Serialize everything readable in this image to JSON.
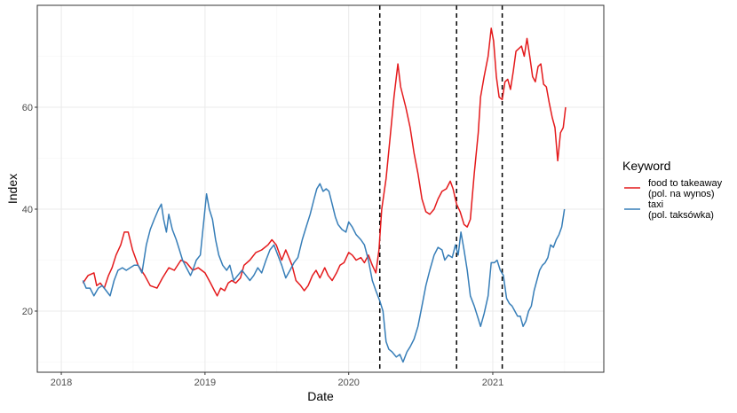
{
  "chart_data": {
    "type": "line",
    "xlabel": "Date",
    "ylabel": "Index",
    "x_axis_type": "date",
    "xlim": [
      "2017-11-01",
      "2021-10-10"
    ],
    "ylim": [
      8,
      80
    ],
    "x_ticks": [
      {
        "date": "2018-01-01",
        "label": "2018"
      },
      {
        "date": "2019-01-01",
        "label": "2019"
      },
      {
        "date": "2020-01-01",
        "label": "2020"
      },
      {
        "date": "2021-01-01",
        "label": "2021"
      }
    ],
    "y_ticks": [
      {
        "value": 20,
        "label": "20"
      },
      {
        "value": 40,
        "label": "40"
      },
      {
        "value": 60,
        "label": "60"
      }
    ],
    "grid": true,
    "legend": {
      "title": "Keyword",
      "position": "right",
      "entries": [
        {
          "series": 0,
          "lines": [
            "food to takeaway",
            "(pol. na wynos)"
          ]
        },
        {
          "series": 1,
          "lines": [
            "taxi",
            "(pol. taksówka)"
          ]
        }
      ]
    },
    "vlines": [
      "2020-03-20",
      "2020-10-01",
      "2021-01-25"
    ],
    "series": [
      {
        "name": "food to takeaway (pol. na wynos)",
        "color": "#e41a1c",
        "points": [
          [
            "2018-02-25",
            25.5
          ],
          [
            "2018-03-10",
            27
          ],
          [
            "2018-03-25",
            27.5
          ],
          [
            "2018-04-01",
            25
          ],
          [
            "2018-04-10",
            25.5
          ],
          [
            "2018-04-20",
            24.5
          ],
          [
            "2018-05-01",
            27
          ],
          [
            "2018-05-10",
            28.5
          ],
          [
            "2018-05-20",
            31
          ],
          [
            "2018-06-01",
            33
          ],
          [
            "2018-06-10",
            35.5
          ],
          [
            "2018-06-20",
            35.5
          ],
          [
            "2018-07-01",
            32
          ],
          [
            "2018-07-15",
            29
          ],
          [
            "2018-08-01",
            27
          ],
          [
            "2018-08-15",
            25
          ],
          [
            "2018-09-01",
            24.5
          ],
          [
            "2018-09-15",
            26.5
          ],
          [
            "2018-10-01",
            28.5
          ],
          [
            "2018-10-15",
            28
          ],
          [
            "2018-11-01",
            30
          ],
          [
            "2018-11-15",
            29.5
          ],
          [
            "2018-12-01",
            28
          ],
          [
            "2018-12-15",
            28.5
          ],
          [
            "2019-01-01",
            27.5
          ],
          [
            "2019-01-15",
            25.5
          ],
          [
            "2019-01-25",
            24
          ],
          [
            "2019-02-01",
            23
          ],
          [
            "2019-02-10",
            24.5
          ],
          [
            "2019-02-20",
            24
          ],
          [
            "2019-03-01",
            25.5
          ],
          [
            "2019-03-10",
            26
          ],
          [
            "2019-03-20",
            25.5
          ],
          [
            "2019-04-01",
            26.5
          ],
          [
            "2019-04-10",
            29
          ],
          [
            "2019-04-25",
            30
          ],
          [
            "2019-05-10",
            31.5
          ],
          [
            "2019-05-25",
            32
          ],
          [
            "2019-06-10",
            33
          ],
          [
            "2019-06-20",
            34
          ],
          [
            "2019-07-01",
            33
          ],
          [
            "2019-07-15",
            30
          ],
          [
            "2019-07-25",
            32
          ],
          [
            "2019-08-10",
            29
          ],
          [
            "2019-08-20",
            26
          ],
          [
            "2019-09-01",
            25
          ],
          [
            "2019-09-10",
            24
          ],
          [
            "2019-09-20",
            25
          ],
          [
            "2019-10-01",
            27
          ],
          [
            "2019-10-10",
            28
          ],
          [
            "2019-10-20",
            26.5
          ],
          [
            "2019-11-01",
            28.5
          ],
          [
            "2019-11-10",
            27
          ],
          [
            "2019-11-20",
            26
          ],
          [
            "2019-12-01",
            27.5
          ],
          [
            "2019-12-10",
            29
          ],
          [
            "2019-12-20",
            29.5
          ],
          [
            "2020-01-01",
            31.5
          ],
          [
            "2020-01-10",
            31
          ],
          [
            "2020-01-20",
            30
          ],
          [
            "2020-02-01",
            30.5
          ],
          [
            "2020-02-10",
            29.5
          ],
          [
            "2020-02-20",
            31
          ],
          [
            "2020-03-01",
            29
          ],
          [
            "2020-03-10",
            27.5
          ],
          [
            "2020-03-18",
            32
          ],
          [
            "2020-03-25",
            40
          ],
          [
            "2020-04-05",
            46
          ],
          [
            "2020-04-15",
            54
          ],
          [
            "2020-04-25",
            62
          ],
          [
            "2020-05-05",
            68.5
          ],
          [
            "2020-05-12",
            64
          ],
          [
            "2020-05-25",
            60
          ],
          [
            "2020-06-05",
            56
          ],
          [
            "2020-06-15",
            51
          ],
          [
            "2020-06-25",
            47
          ],
          [
            "2020-07-05",
            42
          ],
          [
            "2020-07-15",
            39.5
          ],
          [
            "2020-07-25",
            39
          ],
          [
            "2020-08-05",
            40
          ],
          [
            "2020-08-15",
            42
          ],
          [
            "2020-08-25",
            43.5
          ],
          [
            "2020-09-05",
            44
          ],
          [
            "2020-09-15",
            45.5
          ],
          [
            "2020-09-22",
            44
          ],
          [
            "2020-10-01",
            41
          ],
          [
            "2020-10-10",
            39.5
          ],
          [
            "2020-10-20",
            37
          ],
          [
            "2020-10-28",
            36.5
          ],
          [
            "2020-11-05",
            38
          ],
          [
            "2020-11-15",
            47
          ],
          [
            "2020-11-25",
            55
          ],
          [
            "2020-12-01",
            62
          ],
          [
            "2020-12-10",
            66
          ],
          [
            "2020-12-20",
            70
          ],
          [
            "2020-12-28",
            75.5
          ],
          [
            "2021-01-03",
            73
          ],
          [
            "2021-01-10",
            66
          ],
          [
            "2021-01-17",
            62
          ],
          [
            "2021-01-25",
            61.5
          ],
          [
            "2021-02-01",
            65
          ],
          [
            "2021-02-08",
            65.5
          ],
          [
            "2021-02-15",
            63.5
          ],
          [
            "2021-02-22",
            67
          ],
          [
            "2021-03-01",
            71
          ],
          [
            "2021-03-08",
            71.5
          ],
          [
            "2021-03-15",
            72
          ],
          [
            "2021-03-22",
            70
          ],
          [
            "2021-03-29",
            73.5
          ],
          [
            "2021-04-05",
            70
          ],
          [
            "2021-04-12",
            66
          ],
          [
            "2021-04-19",
            65
          ],
          [
            "2021-04-26",
            68
          ],
          [
            "2021-05-03",
            68.5
          ],
          [
            "2021-05-10",
            64.5
          ],
          [
            "2021-05-17",
            64
          ],
          [
            "2021-05-24",
            61
          ],
          [
            "2021-06-01",
            58
          ],
          [
            "2021-06-08",
            56
          ],
          [
            "2021-06-15",
            49.5
          ],
          [
            "2021-06-22",
            55
          ],
          [
            "2021-06-29",
            56
          ],
          [
            "2021-07-05",
            60
          ]
        ]
      },
      {
        "name": "taxi (pol. taksówka)",
        "color": "#377eb8",
        "points": [
          [
            "2018-02-25",
            26
          ],
          [
            "2018-03-05",
            24.5
          ],
          [
            "2018-03-15",
            24.5
          ],
          [
            "2018-03-25",
            23
          ],
          [
            "2018-04-05",
            24.5
          ],
          [
            "2018-04-15",
            25
          ],
          [
            "2018-04-25",
            24
          ],
          [
            "2018-05-05",
            23
          ],
          [
            "2018-05-15",
            26
          ],
          [
            "2018-05-25",
            28
          ],
          [
            "2018-06-05",
            28.5
          ],
          [
            "2018-06-15",
            28
          ],
          [
            "2018-06-25",
            28.5
          ],
          [
            "2018-07-05",
            29
          ],
          [
            "2018-07-15",
            29
          ],
          [
            "2018-07-25",
            27.5
          ],
          [
            "2018-08-05",
            33
          ],
          [
            "2018-08-15",
            36
          ],
          [
            "2018-08-25",
            38
          ],
          [
            "2018-09-05",
            40
          ],
          [
            "2018-09-12",
            41
          ],
          [
            "2018-09-18",
            38
          ],
          [
            "2018-09-25",
            35.5
          ],
          [
            "2018-10-01",
            39
          ],
          [
            "2018-10-10",
            36
          ],
          [
            "2018-10-20",
            34
          ],
          [
            "2018-10-28",
            32
          ],
          [
            "2018-11-05",
            30
          ],
          [
            "2018-11-15",
            28.5
          ],
          [
            "2018-11-25",
            27
          ],
          [
            "2018-12-01",
            28
          ],
          [
            "2018-12-10",
            30
          ],
          [
            "2018-12-20",
            31
          ],
          [
            "2018-12-28",
            37
          ],
          [
            "2019-01-05",
            43
          ],
          [
            "2019-01-12",
            40
          ],
          [
            "2019-01-20",
            38
          ],
          [
            "2019-01-28",
            34
          ],
          [
            "2019-02-05",
            31
          ],
          [
            "2019-02-15",
            29
          ],
          [
            "2019-02-25",
            28
          ],
          [
            "2019-03-05",
            29
          ],
          [
            "2019-03-15",
            26
          ],
          [
            "2019-03-25",
            27
          ],
          [
            "2019-04-05",
            28
          ],
          [
            "2019-04-15",
            27
          ],
          [
            "2019-04-25",
            26
          ],
          [
            "2019-05-05",
            27
          ],
          [
            "2019-05-15",
            28.5
          ],
          [
            "2019-05-25",
            27.5
          ],
          [
            "2019-06-05",
            30
          ],
          [
            "2019-06-15",
            32
          ],
          [
            "2019-06-25",
            33
          ],
          [
            "2019-07-05",
            31
          ],
          [
            "2019-07-15",
            29
          ],
          [
            "2019-07-25",
            26.5
          ],
          [
            "2019-08-05",
            28
          ],
          [
            "2019-08-15",
            29.5
          ],
          [
            "2019-08-25",
            30.5
          ],
          [
            "2019-09-05",
            34
          ],
          [
            "2019-09-15",
            36.5
          ],
          [
            "2019-09-25",
            39
          ],
          [
            "2019-10-05",
            42
          ],
          [
            "2019-10-12",
            44
          ],
          [
            "2019-10-20",
            45
          ],
          [
            "2019-10-28",
            43.5
          ],
          [
            "2019-11-05",
            44
          ],
          [
            "2019-11-12",
            43.5
          ],
          [
            "2019-11-20",
            41
          ],
          [
            "2019-11-28",
            38.5
          ],
          [
            "2019-12-05",
            37
          ],
          [
            "2019-12-15",
            36
          ],
          [
            "2019-12-25",
            35.5
          ],
          [
            "2020-01-01",
            37.5
          ],
          [
            "2020-01-10",
            36.5
          ],
          [
            "2020-01-20",
            35
          ],
          [
            "2020-02-01",
            34
          ],
          [
            "2020-02-10",
            33
          ],
          [
            "2020-02-20",
            30
          ],
          [
            "2020-03-01",
            26
          ],
          [
            "2020-03-10",
            24
          ],
          [
            "2020-03-20",
            22
          ],
          [
            "2020-03-28",
            20
          ],
          [
            "2020-04-05",
            14
          ],
          [
            "2020-04-12",
            12.5
          ],
          [
            "2020-04-20",
            12
          ],
          [
            "2020-05-01",
            11
          ],
          [
            "2020-05-10",
            11.5
          ],
          [
            "2020-05-18",
            10
          ],
          [
            "2020-05-28",
            12
          ],
          [
            "2020-06-05",
            13
          ],
          [
            "2020-06-15",
            14.5
          ],
          [
            "2020-06-25",
            17
          ],
          [
            "2020-07-05",
            21
          ],
          [
            "2020-07-15",
            25
          ],
          [
            "2020-07-25",
            28
          ],
          [
            "2020-08-05",
            31
          ],
          [
            "2020-08-15",
            32.5
          ],
          [
            "2020-08-25",
            32
          ],
          [
            "2020-09-01",
            30
          ],
          [
            "2020-09-10",
            31
          ],
          [
            "2020-09-20",
            30.5
          ],
          [
            "2020-09-28",
            33
          ],
          [
            "2020-10-05",
            31
          ],
          [
            "2020-10-12",
            35.5
          ],
          [
            "2020-10-20",
            32
          ],
          [
            "2020-10-28",
            28
          ],
          [
            "2020-11-05",
            23
          ],
          [
            "2020-11-15",
            21
          ],
          [
            "2020-11-25",
            18.5
          ],
          [
            "2020-12-01",
            17
          ],
          [
            "2020-12-10",
            19.5
          ],
          [
            "2020-12-20",
            23
          ],
          [
            "2020-12-28",
            29.5
          ],
          [
            "2021-01-05",
            29.5
          ],
          [
            "2021-01-12",
            30
          ],
          [
            "2021-01-20",
            28
          ],
          [
            "2021-01-28",
            27
          ],
          [
            "2021-02-05",
            22.5
          ],
          [
            "2021-02-12",
            21.5
          ],
          [
            "2021-02-19",
            21
          ],
          [
            "2021-02-26",
            20
          ],
          [
            "2021-03-05",
            19
          ],
          [
            "2021-03-12",
            19
          ],
          [
            "2021-03-19",
            17
          ],
          [
            "2021-03-26",
            18
          ],
          [
            "2021-04-02",
            20
          ],
          [
            "2021-04-09",
            21
          ],
          [
            "2021-04-16",
            24
          ],
          [
            "2021-04-23",
            26
          ],
          [
            "2021-04-30",
            28
          ],
          [
            "2021-05-07",
            29
          ],
          [
            "2021-05-14",
            29.5
          ],
          [
            "2021-05-21",
            30.5
          ],
          [
            "2021-05-28",
            33
          ],
          [
            "2021-06-04",
            32.5
          ],
          [
            "2021-06-11",
            34
          ],
          [
            "2021-06-18",
            35
          ],
          [
            "2021-06-25",
            36.5
          ],
          [
            "2021-07-02",
            40
          ]
        ]
      }
    ]
  }
}
